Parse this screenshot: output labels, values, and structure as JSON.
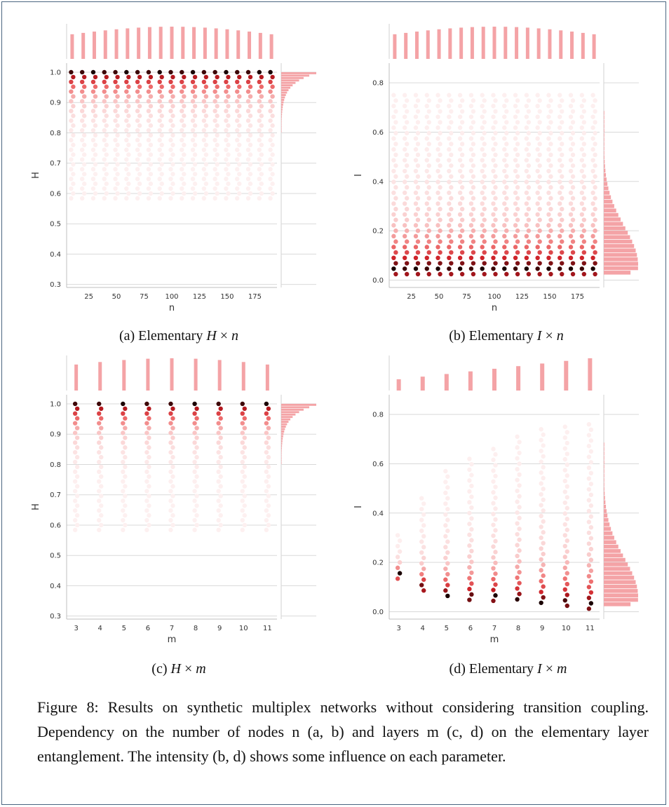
{
  "panels": [
    {
      "id": "a",
      "caption_prefix": "(a) Elementary ",
      "caption_var": "H",
      "caption_times": " × ",
      "caption_var2": "n",
      "chart_data": {
        "type": "scatter",
        "xlabel": "n",
        "ylabel": "H",
        "xlim": [
          5,
          195
        ],
        "ylim": [
          0.29,
          1.03
        ],
        "xticks": [
          25,
          50,
          75,
          100,
          125,
          150,
          175
        ],
        "yticks": [
          0.3,
          0.4,
          0.5,
          0.6,
          0.7,
          0.8,
          0.9,
          1.0
        ],
        "ytick_labels": [
          "0.3",
          "0.4",
          "0.5",
          "0.6",
          "0.7",
          "0.8",
          "0.9",
          "1.0"
        ],
        "x": [
          10,
          20,
          30,
          40,
          50,
          60,
          70,
          80,
          90,
          100,
          110,
          120,
          130,
          140,
          150,
          160,
          170,
          180,
          190
        ],
        "y_min": 0.58,
        "y_max": 1.0,
        "grid": "horizontal",
        "marginal_top": true,
        "marginal_right": true
      }
    },
    {
      "id": "b",
      "caption_prefix": "(b) Elementary ",
      "caption_var": "I",
      "caption_times": " × ",
      "caption_var2": "n",
      "chart_data": {
        "type": "scatter",
        "xlabel": "n",
        "ylabel": "I",
        "xlim": [
          5,
          195
        ],
        "ylim": [
          -0.03,
          0.88
        ],
        "xticks": [
          25,
          50,
          75,
          100,
          125,
          150,
          175
        ],
        "yticks": [
          0.0,
          0.2,
          0.4,
          0.6,
          0.8
        ],
        "ytick_labels": [
          "0.0",
          "0.2",
          "0.4",
          "0.6",
          "0.8"
        ],
        "x": [
          10,
          20,
          30,
          40,
          50,
          60,
          70,
          80,
          90,
          100,
          110,
          120,
          130,
          140,
          150,
          160,
          170,
          180,
          190
        ],
        "y_min": 0.01,
        "y_max": 0.75,
        "grid": "horizontal",
        "marginal_top": true,
        "marginal_right": true
      }
    },
    {
      "id": "c",
      "caption_prefix": "(c) ",
      "caption_var": "H",
      "caption_times": " × ",
      "caption_var2": "m",
      "chart_data": {
        "type": "scatter",
        "xlabel": "m",
        "ylabel": "H",
        "xlim": [
          2.6,
          11.4
        ],
        "ylim": [
          0.29,
          1.03
        ],
        "xticks": [
          3,
          4,
          5,
          6,
          7,
          8,
          9,
          10,
          11
        ],
        "yticks": [
          0.3,
          0.4,
          0.5,
          0.6,
          0.7,
          0.8,
          0.9,
          1.0
        ],
        "ytick_labels": [
          "0.3",
          "0.4",
          "0.5",
          "0.6",
          "0.7",
          "0.8",
          "0.9",
          "1.0"
        ],
        "x": [
          3,
          4,
          5,
          6,
          7,
          8,
          9,
          10,
          11
        ],
        "y_min": 0.58,
        "y_max": 1.0,
        "grid": "horizontal",
        "marginal_top": true,
        "marginal_right": true
      }
    },
    {
      "id": "d",
      "caption_prefix": "(d) Elementary ",
      "caption_var": "I",
      "caption_times": " × ",
      "caption_var2": "m",
      "chart_data": {
        "type": "scatter",
        "xlabel": "m",
        "ylabel": "I",
        "xlim": [
          2.6,
          11.4
        ],
        "ylim": [
          -0.03,
          0.88
        ],
        "xticks": [
          3,
          4,
          5,
          6,
          7,
          8,
          9,
          10,
          11
        ],
        "yticks": [
          0.0,
          0.2,
          0.4,
          0.6,
          0.8
        ],
        "ytick_labels": [
          "0.0",
          "0.2",
          "0.4",
          "0.6",
          "0.8"
        ],
        "x": [
          3,
          4,
          5,
          6,
          7,
          8,
          9,
          10,
          11
        ],
        "y_min": [
          0.13,
          0.08,
          0.05,
          0.04,
          0.04,
          0.03,
          0.02,
          0.02,
          0.01
        ],
        "y_max": [
          0.31,
          0.46,
          0.57,
          0.62,
          0.66,
          0.71,
          0.74,
          0.75,
          0.76
        ],
        "grid": "horizontal",
        "marginal_top": true,
        "marginal_right": true
      }
    }
  ],
  "figure_caption": "Figure 8: Results on synthetic multiplex networks without considering transition coupling. Dependency on the number of nodes n (a, b) and layers m (c, d) on the elementary layer entanglement. The intensity (b, d) shows some influence on each parameter.",
  "colors": {
    "dark": "#1a0000",
    "red": "#cb1d24",
    "mid": "#ee6f6f",
    "light": "#f9c9c9",
    "hist": "#f4a3a6",
    "grid": "#d9d9d9",
    "text": "#333333"
  }
}
